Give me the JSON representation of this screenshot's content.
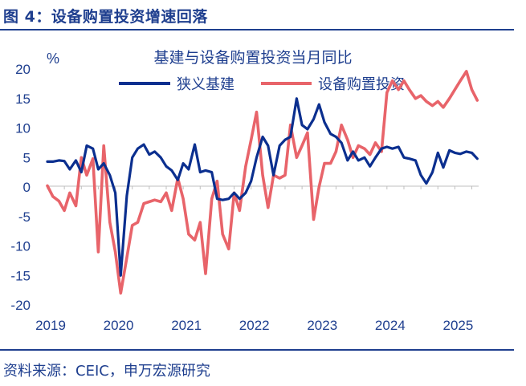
{
  "figure_title": "图 4：设备购置投资增速回落",
  "source": "资料来源：CEIC，申万宏源研究",
  "chart_data": {
    "type": "line",
    "title": "基建与设备购置投资当月同比",
    "ylabel": "%",
    "xlabel": "",
    "ylim": [
      -20,
      20
    ],
    "yticks": [
      20,
      15,
      10,
      5,
      0,
      -5,
      -10,
      -15,
      -20
    ],
    "xlim": [
      2019.0,
      2025.35
    ],
    "xticks": [
      2019,
      2020,
      2021,
      2022,
      2023,
      2024,
      2025
    ],
    "xtick_labels": [
      "2019",
      "2020",
      "2021",
      "2022",
      "2023",
      "2024",
      "2025"
    ],
    "legend_position": "top",
    "series": [
      {
        "name": "狭义基建",
        "color": "#0b2f8f",
        "points": [
          [
            2019.0,
            4.3
          ],
          [
            2019.08,
            4.3
          ],
          [
            2019.17,
            4.5
          ],
          [
            2019.25,
            4.4
          ],
          [
            2019.33,
            3.0
          ],
          [
            2019.42,
            4.5
          ],
          [
            2019.5,
            2.5
          ],
          [
            2019.58,
            7.0
          ],
          [
            2019.67,
            6.5
          ],
          [
            2019.75,
            3.0
          ],
          [
            2019.83,
            4.0
          ],
          [
            2019.92,
            2.0
          ],
          [
            2020.0,
            -1.0
          ],
          [
            2020.08,
            -15.0
          ],
          [
            2020.17,
            -1.5
          ],
          [
            2020.25,
            5.0
          ],
          [
            2020.33,
            6.5
          ],
          [
            2020.42,
            7.2
          ],
          [
            2020.5,
            5.5
          ],
          [
            2020.58,
            6.0
          ],
          [
            2020.67,
            5.0
          ],
          [
            2020.75,
            3.5
          ],
          [
            2020.83,
            2.8
          ],
          [
            2020.92,
            1.2
          ],
          [
            2021.0,
            4.0
          ],
          [
            2021.08,
            3.0
          ],
          [
            2021.17,
            7.2
          ],
          [
            2021.25,
            2.5
          ],
          [
            2021.33,
            2.8
          ],
          [
            2021.42,
            2.5
          ],
          [
            2021.5,
            -2.0
          ],
          [
            2021.58,
            -2.2
          ],
          [
            2021.67,
            -2.0
          ],
          [
            2021.75,
            -1.0
          ],
          [
            2021.83,
            -2.0
          ],
          [
            2021.92,
            -1.0
          ],
          [
            2022.0,
            1.0
          ],
          [
            2022.08,
            5.0
          ],
          [
            2022.17,
            8.5
          ],
          [
            2022.25,
            7.0
          ],
          [
            2022.33,
            2.0
          ],
          [
            2022.42,
            7.0
          ],
          [
            2022.5,
            8.0
          ],
          [
            2022.58,
            8.5
          ],
          [
            2022.67,
            15.0
          ],
          [
            2022.75,
            10.5
          ],
          [
            2022.83,
            9.8
          ],
          [
            2022.92,
            11.5
          ],
          [
            2023.0,
            14.0
          ],
          [
            2023.08,
            11.0
          ],
          [
            2023.17,
            9.0
          ],
          [
            2023.25,
            8.5
          ],
          [
            2023.33,
            7.5
          ],
          [
            2023.42,
            4.5
          ],
          [
            2023.5,
            6.0
          ],
          [
            2023.58,
            4.5
          ],
          [
            2023.67,
            5.0
          ],
          [
            2023.75,
            3.5
          ],
          [
            2023.83,
            5.0
          ],
          [
            2023.92,
            6.5
          ],
          [
            2024.0,
            6.8
          ],
          [
            2024.08,
            6.5
          ],
          [
            2024.17,
            6.8
          ],
          [
            2024.25,
            5.0
          ],
          [
            2024.33,
            4.8
          ],
          [
            2024.42,
            4.5
          ],
          [
            2024.5,
            2.0
          ],
          [
            2024.58,
            0.6
          ],
          [
            2024.67,
            2.5
          ],
          [
            2024.75,
            5.8
          ],
          [
            2024.83,
            3.3
          ],
          [
            2024.92,
            6.2
          ],
          [
            2025.0,
            5.8
          ],
          [
            2025.08,
            5.6
          ],
          [
            2025.17,
            6.0
          ],
          [
            2025.25,
            5.8
          ],
          [
            2025.33,
            4.8
          ]
        ]
      },
      {
        "name": "设备购置投资",
        "color": "#e8646a",
        "points": [
          [
            2019.0,
            0.2
          ],
          [
            2019.08,
            -1.6
          ],
          [
            2019.17,
            -2.4
          ],
          [
            2019.25,
            -4.0
          ],
          [
            2019.33,
            -1.0
          ],
          [
            2019.42,
            -3.2
          ],
          [
            2019.5,
            5.0
          ],
          [
            2019.58,
            2.0
          ],
          [
            2019.67,
            4.8
          ],
          [
            2019.75,
            -11.0
          ],
          [
            2019.83,
            7.0
          ],
          [
            2019.92,
            -6.0
          ],
          [
            2020.0,
            -11.0
          ],
          [
            2020.08,
            -18.0
          ],
          [
            2020.17,
            -12.0
          ],
          [
            2020.25,
            -6.5
          ],
          [
            2020.33,
            -6.0
          ],
          [
            2020.42,
            -2.8
          ],
          [
            2020.5,
            -2.5
          ],
          [
            2020.58,
            -2.2
          ],
          [
            2020.67,
            -2.5
          ],
          [
            2020.75,
            -1.0
          ],
          [
            2020.83,
            -4.0
          ],
          [
            2020.92,
            1.5
          ],
          [
            2021.0,
            -2.0
          ],
          [
            2021.08,
            -8.0
          ],
          [
            2021.17,
            -9.0
          ],
          [
            2021.25,
            -6.0
          ],
          [
            2021.33,
            -14.7
          ],
          [
            2021.42,
            -2.0
          ],
          [
            2021.5,
            1.0
          ],
          [
            2021.58,
            -8.0
          ],
          [
            2021.67,
            -10.5
          ],
          [
            2021.75,
            -1.0
          ],
          [
            2021.83,
            -4.0
          ],
          [
            2021.92,
            3.5
          ],
          [
            2022.0,
            8.0
          ],
          [
            2022.08,
            12.7
          ],
          [
            2022.17,
            2.0
          ],
          [
            2022.25,
            -3.5
          ],
          [
            2022.33,
            2.0
          ],
          [
            2022.42,
            1.5
          ],
          [
            2022.5,
            2.0
          ],
          [
            2022.58,
            10.5
          ],
          [
            2022.67,
            5.0
          ],
          [
            2022.75,
            7.0
          ],
          [
            2022.83,
            9.2
          ],
          [
            2022.92,
            -5.5
          ],
          [
            2023.0,
            0.0
          ],
          [
            2023.08,
            4.0
          ],
          [
            2023.17,
            4.0
          ],
          [
            2023.25,
            6.0
          ],
          [
            2023.33,
            10.5
          ],
          [
            2023.42,
            8.0
          ],
          [
            2023.5,
            5.0
          ],
          [
            2023.58,
            7.0
          ],
          [
            2023.67,
            6.5
          ],
          [
            2023.75,
            5.5
          ],
          [
            2023.83,
            7.5
          ],
          [
            2023.92,
            6.0
          ],
          [
            2024.0,
            16.0
          ],
          [
            2024.08,
            18.0
          ],
          [
            2024.17,
            16.5
          ],
          [
            2024.25,
            18.0
          ],
          [
            2024.33,
            16.5
          ],
          [
            2024.42,
            15.0
          ],
          [
            2024.5,
            15.5
          ],
          [
            2024.58,
            14.5
          ],
          [
            2024.67,
            13.8
          ],
          [
            2024.75,
            14.5
          ],
          [
            2024.83,
            13.5
          ],
          [
            2024.92,
            15.0
          ],
          [
            2025.0,
            16.5
          ],
          [
            2025.08,
            18.0
          ],
          [
            2025.17,
            19.6
          ],
          [
            2025.25,
            16.5
          ],
          [
            2025.33,
            14.7
          ]
        ]
      }
    ]
  }
}
